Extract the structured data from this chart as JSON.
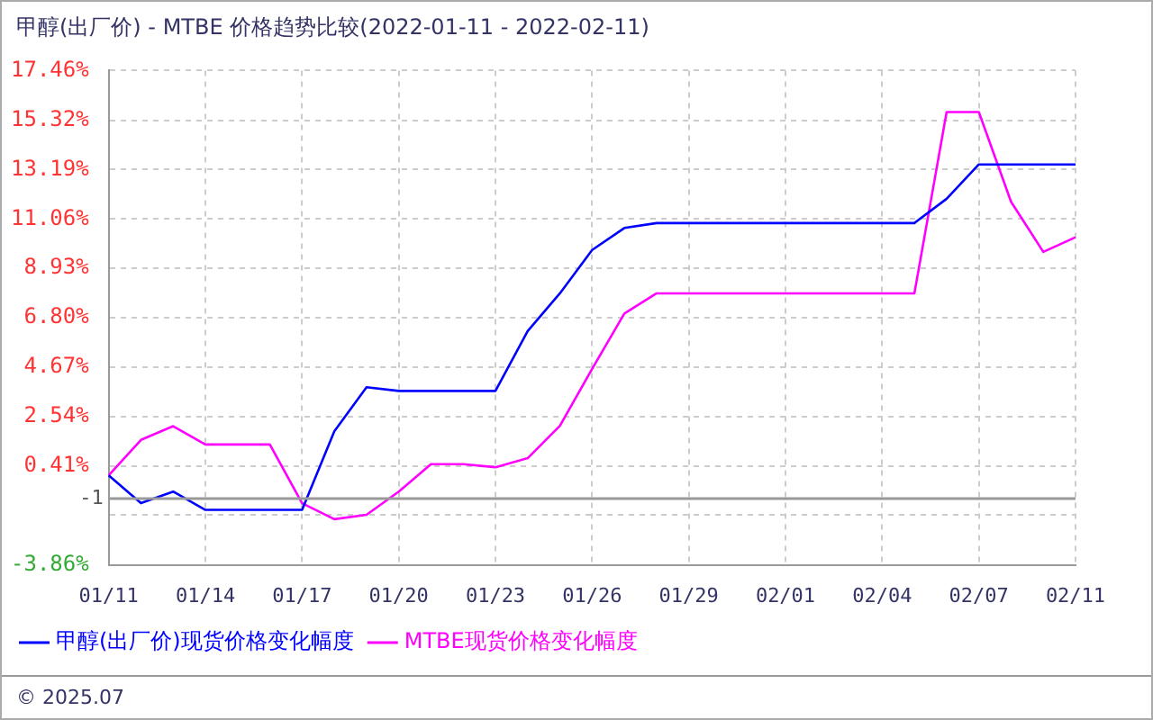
{
  "chart_data": {
    "type": "line",
    "title": "甲醇(出厂价) - MTBE 价格趋势比较(2022-01-11 - 2022-02-11)",
    "categories": [
      "01/11",
      null,
      null,
      "01/14",
      null,
      null,
      "01/17",
      null,
      null,
      "01/20",
      null,
      null,
      "01/23",
      null,
      null,
      "01/26",
      null,
      null,
      "01/29",
      null,
      null,
      "02/01",
      null,
      null,
      "02/04",
      null,
      null,
      "02/07",
      null,
      null,
      "02/11"
    ],
    "series": [
      {
        "name": "甲醇(出厂价)现货价格变化幅度",
        "color": "#0000ff",
        "values": [
          0,
          -1.2,
          -0.7,
          -1.49,
          -1.49,
          -1.49,
          -1.49,
          1.9,
          3.8,
          3.64,
          3.64,
          3.64,
          3.64,
          6.22,
          7.85,
          9.72,
          10.67,
          10.88,
          10.88,
          10.88,
          10.88,
          10.88,
          10.88,
          10.88,
          10.88,
          10.88,
          11.93,
          13.41,
          13.41,
          13.41,
          13.41
        ]
      },
      {
        "name": "MTBE现货价格变化幅度",
        "color": "#ff00ff",
        "values": [
          0,
          1.53,
          2.12,
          1.33,
          1.33,
          1.33,
          -1.2,
          -1.89,
          -1.7,
          -0.7,
          0.48,
          0.48,
          0.35,
          0.74,
          2.14,
          4.59,
          6.98,
          7.85,
          7.85,
          7.85,
          7.85,
          7.85,
          7.85,
          7.85,
          7.85,
          7.85,
          15.67,
          15.67,
          11.8,
          9.64,
          10.27
        ]
      }
    ],
    "ylim": [
      -3.86,
      17.46
    ],
    "yticks": [
      {
        "value": -3.86,
        "label": "-3.86%"
      },
      {
        "value": -1.72,
        "label": null
      },
      {
        "value": 0.41,
        "label": "0.41%"
      },
      {
        "value": 2.54,
        "label": "2.54%"
      },
      {
        "value": 4.67,
        "label": "4.67%"
      },
      {
        "value": 6.8,
        "label": "6.80%"
      },
      {
        "value": 8.93,
        "label": "8.93%"
      },
      {
        "value": 11.06,
        "label": "11.06%"
      },
      {
        "value": 13.19,
        "label": "13.19%"
      },
      {
        "value": 15.32,
        "label": "15.32%"
      },
      {
        "value": 17.46,
        "label": "17.46%"
      }
    ],
    "ref_lines": [
      {
        "axis": "y",
        "value": -1,
        "label": "-1",
        "color": "#999999"
      }
    ],
    "grid": true,
    "legend": "bottom",
    "marker": "none",
    "line_style": "solid",
    "annotations": [
      "© 2025.07"
    ]
  }
}
